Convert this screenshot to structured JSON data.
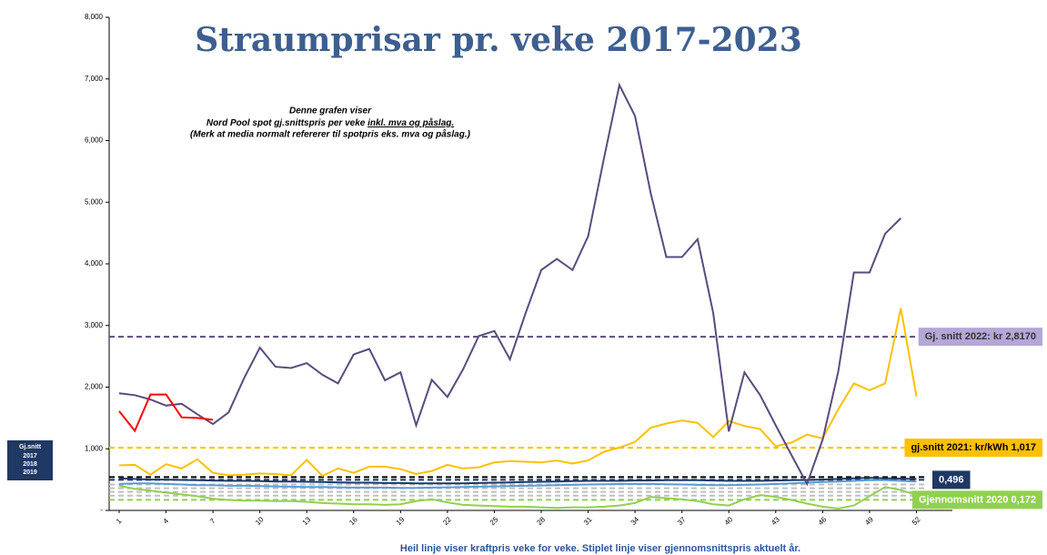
{
  "chart_data": {
    "type": "line",
    "title": "Straumprisar pr. veke 2017-2023",
    "note": [
      "Denne grafen viser",
      "Nord Pool spot gj.snittspris per veke ",
      "inkl. mva og påslag.",
      "(Merk at media normalt refererer til spotpris eks. mva og påslag.)"
    ],
    "footnote": "Heil linje viser kraftpris veke for veke. Stiplet linje viser gjennomsnittspris aktuelt år.",
    "side_box": [
      "Gj.snitt",
      "2017",
      "2018",
      "2019"
    ],
    "x": [
      1,
      2,
      3,
      4,
      5,
      6,
      7,
      8,
      9,
      10,
      11,
      12,
      13,
      14,
      15,
      16,
      17,
      18,
      19,
      20,
      21,
      22,
      23,
      24,
      25,
      26,
      27,
      28,
      29,
      30,
      31,
      32,
      33,
      34,
      35,
      36,
      37,
      38,
      39,
      40,
      41,
      42,
      43,
      44,
      45,
      46,
      47,
      48,
      49,
      50,
      51,
      52
    ],
    "xlim": [
      0.36,
      54.3
    ],
    "xticks": [
      1,
      4,
      7,
      10,
      13,
      16,
      19,
      22,
      25,
      28,
      31,
      34,
      37,
      40,
      43,
      46,
      49,
      52
    ],
    "ylim": [
      0,
      8000
    ],
    "yticks": [
      {
        "value": 0,
        "label": "-"
      },
      {
        "value": 1000,
        "label": "1,000"
      },
      {
        "value": 2000,
        "label": "2,000"
      },
      {
        "value": 3000,
        "label": "3,000"
      },
      {
        "value": 4000,
        "label": "4,000"
      },
      {
        "value": 5000,
        "label": "5,000"
      },
      {
        "value": 6000,
        "label": "6,000"
      },
      {
        "value": 7000,
        "label": "7,000"
      },
      {
        "value": 8000,
        "label": "8,000"
      }
    ],
    "series": [
      {
        "color": "#5b9bd5",
        "values": [
          430,
          440,
          440,
          430,
          420,
          410,
          410,
          400,
          400,
          395,
          390,
          385,
          380,
          380,
          375,
          370,
          370,
          370,
          365,
          365,
          370,
          375,
          380,
          385,
          390,
          395,
          400,
          405,
          410,
          415,
          420,
          425,
          430,
          430,
          430,
          425,
          420,
          415,
          410,
          410,
          415,
          420,
          430,
          440,
          450,
          460,
          470,
          480,
          490,
          490,
          480,
          470
        ]
      },
      {
        "color": "#1f3864",
        "values": [
          520,
          510,
          500,
          500,
          495,
          490,
          485,
          480,
          480,
          475,
          470,
          470,
          465,
          460,
          455,
          450,
          450,
          445,
          445,
          440,
          440,
          440,
          440,
          445,
          450,
          455,
          460,
          465,
          470,
          475,
          480,
          480,
          480,
          485,
          485,
          490,
          490,
          490,
          485,
          480,
          480,
          480,
          485,
          490,
          495,
          500,
          510,
          520,
          530,
          520,
          515,
          510
        ]
      },
      {
        "color": "#92d050",
        "values": [
          400,
          350,
          320,
          290,
          260,
          230,
          190,
          170,
          160,
          160,
          150,
          150,
          140,
          120,
          110,
          100,
          100,
          90,
          100,
          150,
          180,
          130,
          90,
          80,
          70,
          60,
          60,
          50,
          40,
          50,
          50,
          60,
          80,
          120,
          220,
          200,
          180,
          150,
          100,
          80,
          180,
          250,
          220,
          170,
          110,
          60,
          30,
          80,
          230,
          380,
          330,
          250
        ]
      },
      {
        "color": "#ffc000",
        "values": [
          730,
          740,
          580,
          750,
          680,
          830,
          610,
          570,
          580,
          600,
          590,
          570,
          820,
          560,
          680,
          610,
          710,
          710,
          670,
          590,
          640,
          740,
          680,
          700,
          780,
          800,
          790,
          780,
          810,
          760,
          810,
          950,
          1020,
          1110,
          1340,
          1410,
          1460,
          1420,
          1190,
          1450,
          1370,
          1320,
          1040,
          1100,
          1230,
          1170,
          1640,
          2060,
          1950,
          2060,
          3280,
          1850
        ]
      },
      {
        "color": "#5b4a7d",
        "values": [
          1900,
          1870,
          1800,
          1700,
          1730,
          1560,
          1400,
          1590,
          2150,
          2640,
          2330,
          2310,
          2390,
          2200,
          2060,
          2530,
          2620,
          2110,
          2240,
          1380,
          2120,
          1840,
          2290,
          2830,
          2910,
          2450,
          3200,
          3900,
          4080,
          3900,
          4450,
          5700,
          6900,
          6400,
          5150,
          4110,
          4110,
          4400,
          3200,
          1280,
          2240,
          1870,
          1380,
          900,
          430,
          1150,
          2250,
          3860,
          3860,
          4490,
          4740,
          null
        ]
      },
      {
        "color": "#ff0000",
        "values": [
          1610,
          1290,
          1880,
          1880,
          1510,
          1500,
          1470,
          null,
          null,
          null,
          null,
          null,
          null,
          null,
          null,
          null,
          null,
          null,
          null,
          null,
          null,
          null,
          null,
          null,
          null,
          null,
          null,
          null,
          null,
          null,
          null,
          null,
          null,
          null,
          null,
          null,
          null,
          null,
          null,
          null,
          null,
          null,
          null,
          null,
          null,
          null,
          null,
          null,
          null,
          null,
          null,
          null
        ]
      }
    ],
    "reference_lines": [
      {
        "value": 2817,
        "color": "#5b4a7d",
        "label": "Gj. snitt 2022: kr 2,8170",
        "box": "#b4a7d6",
        "text_color": "#333333"
      },
      {
        "value": 1017,
        "color": "#ffc000",
        "label": "gj.snitt 2021: kr/kWh   1,017",
        "box": "#ffc000",
        "text_color": "#000000"
      },
      {
        "value": 540,
        "color": "#000000"
      },
      {
        "value": 496,
        "color": "#1f3864",
        "label": "0,496",
        "box": "#1f3864",
        "text_color": "#ffffff"
      },
      {
        "value": 420,
        "color": "#bfbfbf"
      },
      {
        "value": 360,
        "color": "#bfbfbf"
      },
      {
        "value": 300,
        "color": "#bfbfbf"
      },
      {
        "value": 240,
        "color": "#bfbfbf"
      },
      {
        "value": 172,
        "color": "#92d050",
        "label": "Gjennomsnitt 2020  0,172",
        "box": "#92d050",
        "text_color": "#ffffff"
      }
    ]
  }
}
